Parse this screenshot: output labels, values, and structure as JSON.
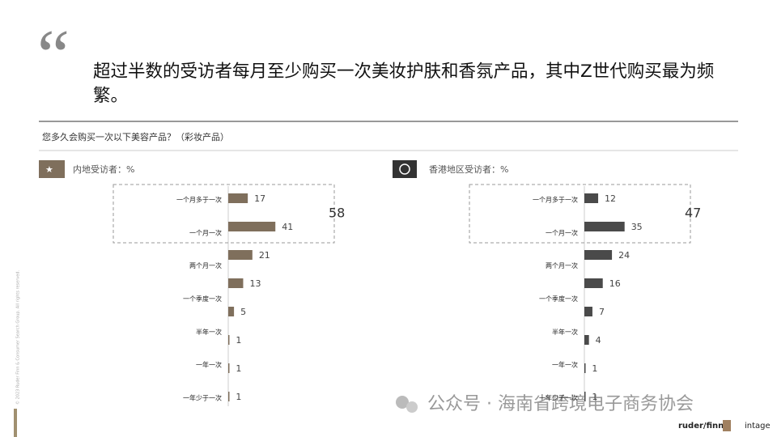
{
  "headline": "超过半数的受访者每月至少购买一次美妆护肤和香氛产品，其中Z世代购买最为频繁。",
  "question": "您多久会购买一次以下美容产品？（彩妆产品）",
  "copyright": "© 2023 Ruder Finn & Consumer Search Group. All rights reserved.",
  "watermark": "公众号 · 海南省跨境电子商务协会",
  "logos": [
    "ruder/finn",
    "intage"
  ],
  "chart_data": [
    {
      "type": "bar",
      "subtitle": "内地受访者：%",
      "color": "#7f6f5c",
      "categories": [
        "一个月多于一次",
        "一个月一次",
        "两个月一次",
        "一个季度一次",
        "半年一次",
        "一年一次",
        "一年少于一次",
        null
      ],
      "values": [
        17,
        41,
        21,
        13,
        5,
        1,
        1,
        1
      ],
      "highlight_total": 58
    },
    {
      "type": "bar",
      "subtitle": "香港地区受访者：%",
      "color": "#4a4a4a",
      "categories": [
        "一个月多于一次",
        "一个月一次",
        "两个月一次",
        "一个季度一次",
        "半年一次",
        "一年一次",
        "一年少于一次",
        null
      ],
      "values": [
        12,
        35,
        24,
        16,
        7,
        4,
        1,
        1
      ],
      "highlight_total": 47
    }
  ]
}
